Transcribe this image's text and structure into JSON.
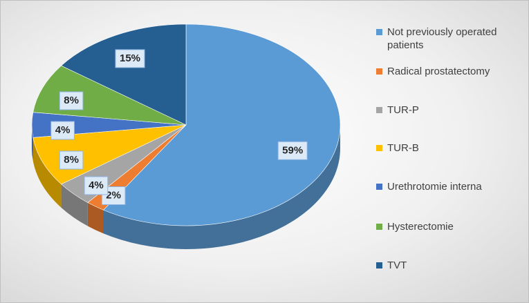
{
  "chart_data": {
    "type": "pie",
    "categories": [
      "Not previously operated patients",
      "Radical prostatectomy",
      "TUR-P",
      "TUR-B",
      "Urethrotomie interna",
      "Hysterectomie",
      "TVT"
    ],
    "values": [
      59,
      2,
      4,
      8,
      4,
      8,
      15
    ],
    "value_labels": [
      "59%",
      "2%",
      "4%",
      "8%",
      "4%",
      "8%",
      "15%"
    ],
    "colors": [
      "#5b9bd5",
      "#ed7d31",
      "#a5a5a5",
      "#ffc000",
      "#4472c4",
      "#70ad47",
      "#255e91"
    ],
    "legend": "right"
  }
}
